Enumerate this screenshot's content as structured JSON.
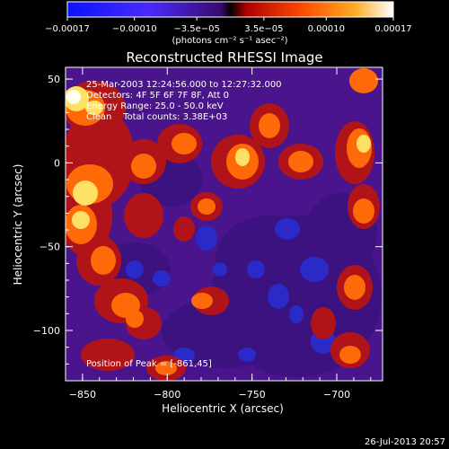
{
  "chart_data": {
    "type": "heatmap",
    "title": "Reconstructed RHESSI Image",
    "xlabel": "Heliocentric X (arcsec)",
    "ylabel": "Heliocentric Y (arcsec)",
    "xlim": [
      -860,
      -673
    ],
    "ylim": [
      -130,
      57
    ],
    "x_ticks": [
      -850,
      -800,
      -750,
      -700
    ],
    "x_tick_labels": [
      "−850",
      "−800",
      "−750",
      "−700"
    ],
    "y_ticks": [
      50,
      0,
      -50,
      -100
    ],
    "y_tick_labels": [
      "50",
      "0",
      "−50",
      "−100"
    ],
    "colorbar": {
      "range": [
        -0.00017,
        0.00017
      ],
      "ticks": [
        -0.00017,
        -0.0001,
        -3.5e-05,
        3.5e-05,
        0.0001,
        0.00017
      ],
      "tick_labels": [
        "−0.00017",
        "−0.00010",
        "−3.5e−05",
        "3.5e−05",
        "0.00010",
        "0.00017"
      ],
      "unit_label": "(photons cm⁻² s⁻¹ asec⁻²)"
    },
    "annotations": [
      "25-Mar-2003 12:24:56.000 to 12:27:32.000",
      "Detectors: 4F 5F 6F 7F 8F, Att 0",
      "Energy Range: 25.0 - 50.0 keV",
      "Clean    Total counts: 3.38E+03"
    ],
    "peak_label": "Position of Peak = [-861,45]",
    "peak": [
      -861,
      45
    ]
  },
  "footer": {
    "timestamp": "26-Jul-2013 20:57"
  },
  "colors": {
    "bg": "#000000",
    "negative": "#3a3cff",
    "zero": "#5a18a0",
    "low": "#c81e1e",
    "mid": "#ff7a00",
    "high": "#ffffb0"
  }
}
